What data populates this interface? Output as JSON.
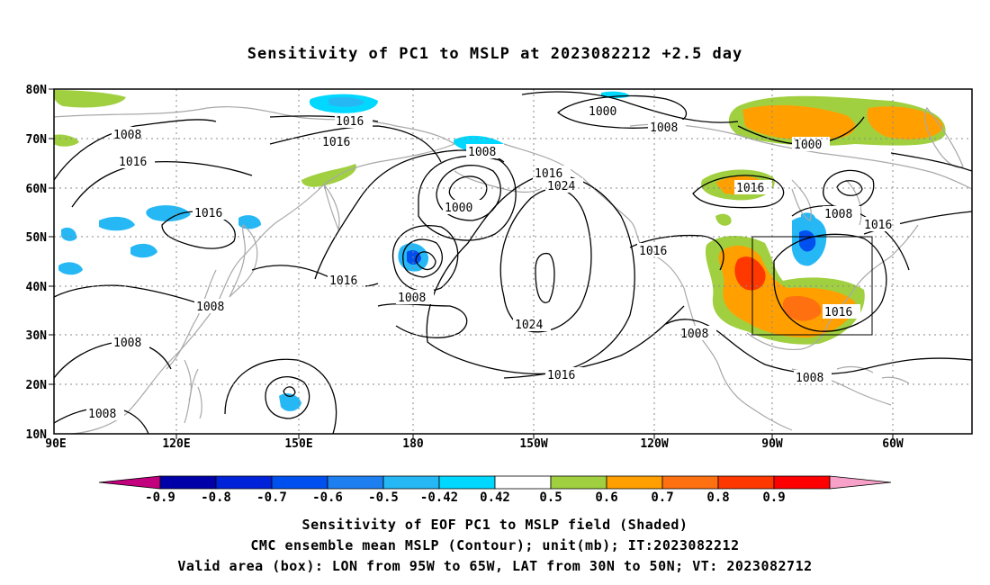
{
  "title": "Sensitivity of PC1 to MSLP at 2023082212 +2.5 day",
  "lat_labels": [
    "80N",
    "70N",
    "60N",
    "50N",
    "40N",
    "30N",
    "20N",
    "10N"
  ],
  "lon_labels": [
    "90E",
    "120E",
    "150E",
    "180",
    "150W",
    "120W",
    "90W",
    "60W"
  ],
  "colorbar": {
    "tick_labels": [
      "-0.9",
      "-0.8",
      "-0.7",
      "-0.6",
      "-0.5",
      "-0.42",
      "0.42",
      "0.5",
      "0.6",
      "0.7",
      "0.8",
      "0.9"
    ],
    "colors": [
      "#c3007e",
      "#0000a8",
      "#0022d8",
      "#0050f0",
      "#1e80f0",
      "#26b8f5",
      "#00d8ff",
      "#ffffff",
      "#a0d040",
      "#ffa000",
      "#ff7010",
      "#ff3800",
      "#ff0000",
      "#f7a0c8"
    ]
  },
  "contour_labels": [
    "1016",
    "1008",
    "1016",
    "1016",
    "1016",
    "1008",
    "1016",
    "1016",
    "1008",
    "1008",
    "1008",
    "1016",
    "1008",
    "1000",
    "1008",
    "1024",
    "1016",
    "1024",
    "1016",
    "1000",
    "1008",
    "1000",
    "1016",
    "1008",
    "1016",
    "1016",
    "1008",
    "1008"
  ],
  "captions": {
    "line1": "Sensitivity of EOF PC1 to MSLP field (Shaded)",
    "line2": "CMC ensemble mean MSLP (Contour); unit(mb); IT:2023082212",
    "line3": "Valid area (box): LON from 95W to 65W, LAT from 30N to 50N; VT: 2023082712"
  }
}
